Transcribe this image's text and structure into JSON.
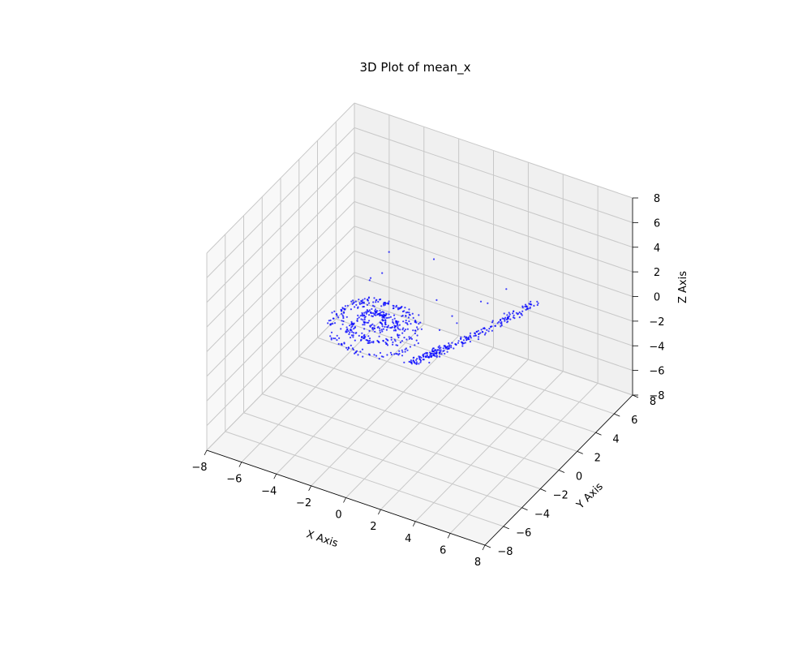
{
  "chart_data": {
    "type": "scatter3d",
    "title": "3D Plot of mean_x",
    "xlabel": "X Axis",
    "ylabel": "Y Axis",
    "zlabel": "Z Axis",
    "xlim": [
      -8,
      8
    ],
    "ylim": [
      -8,
      8
    ],
    "zlim": [
      -8,
      8
    ],
    "xticks": [
      "−8",
      "−6",
      "−4",
      "−2",
      "0",
      "2",
      "4",
      "6",
      "8"
    ],
    "yticks": [
      "−8",
      "−6",
      "−4",
      "−2",
      "0",
      "2",
      "4",
      "6",
      "8"
    ],
    "zticks": [
      "−8",
      "−6",
      "−4",
      "−2",
      "0",
      "2",
      "4",
      "6",
      "8"
    ],
    "grid": true,
    "marker_color": "#0000ff",
    "description_of_points": "Approximately 700 small blue points forming a spiral disc (centered near x=-3, y=1, z=-2 with radius about 2.5) joined to a curved arm that rises toward x=4, y=4, z=1",
    "n_points": 700,
    "spiral": {
      "cx": -3.0,
      "cy": 1.0,
      "cz": -2.0,
      "radius": 2.6,
      "turns": 4
    },
    "arm": {
      "start": [
        -0.5,
        0.0,
        -3.4
      ],
      "end": [
        4.5,
        4.2,
        0.8
      ]
    }
  }
}
